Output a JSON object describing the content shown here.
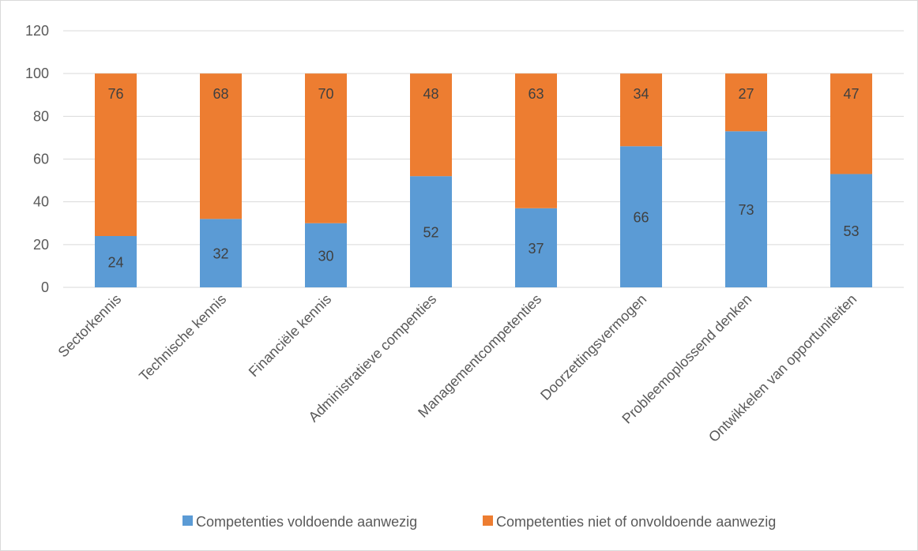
{
  "chart_data": {
    "type": "bar",
    "stacked": true,
    "title": "",
    "xlabel": "",
    "ylabel": "",
    "ylim": [
      0,
      120
    ],
    "yticks": [
      0,
      20,
      40,
      60,
      80,
      100,
      120
    ],
    "grid": true,
    "legend_position": "bottom",
    "categories": [
      "Sectorkennis",
      "Technische kennis",
      "Financiële kennis",
      "Administratieve compenties",
      "Managementcompetenties",
      "Doorzettingsvermogen",
      "Probleemoplossend denken",
      "Ontwikkelen van opportuniteiten"
    ],
    "series": [
      {
        "name": "Competenties voldoende aanwezig",
        "color": "#5B9BD5",
        "values": [
          24,
          32,
          30,
          52,
          37,
          66,
          73,
          53
        ]
      },
      {
        "name": "Competenties niet of onvoldoende aanwezig",
        "color": "#ED7D31",
        "values": [
          76,
          68,
          70,
          48,
          63,
          34,
          27,
          47
        ]
      }
    ]
  }
}
